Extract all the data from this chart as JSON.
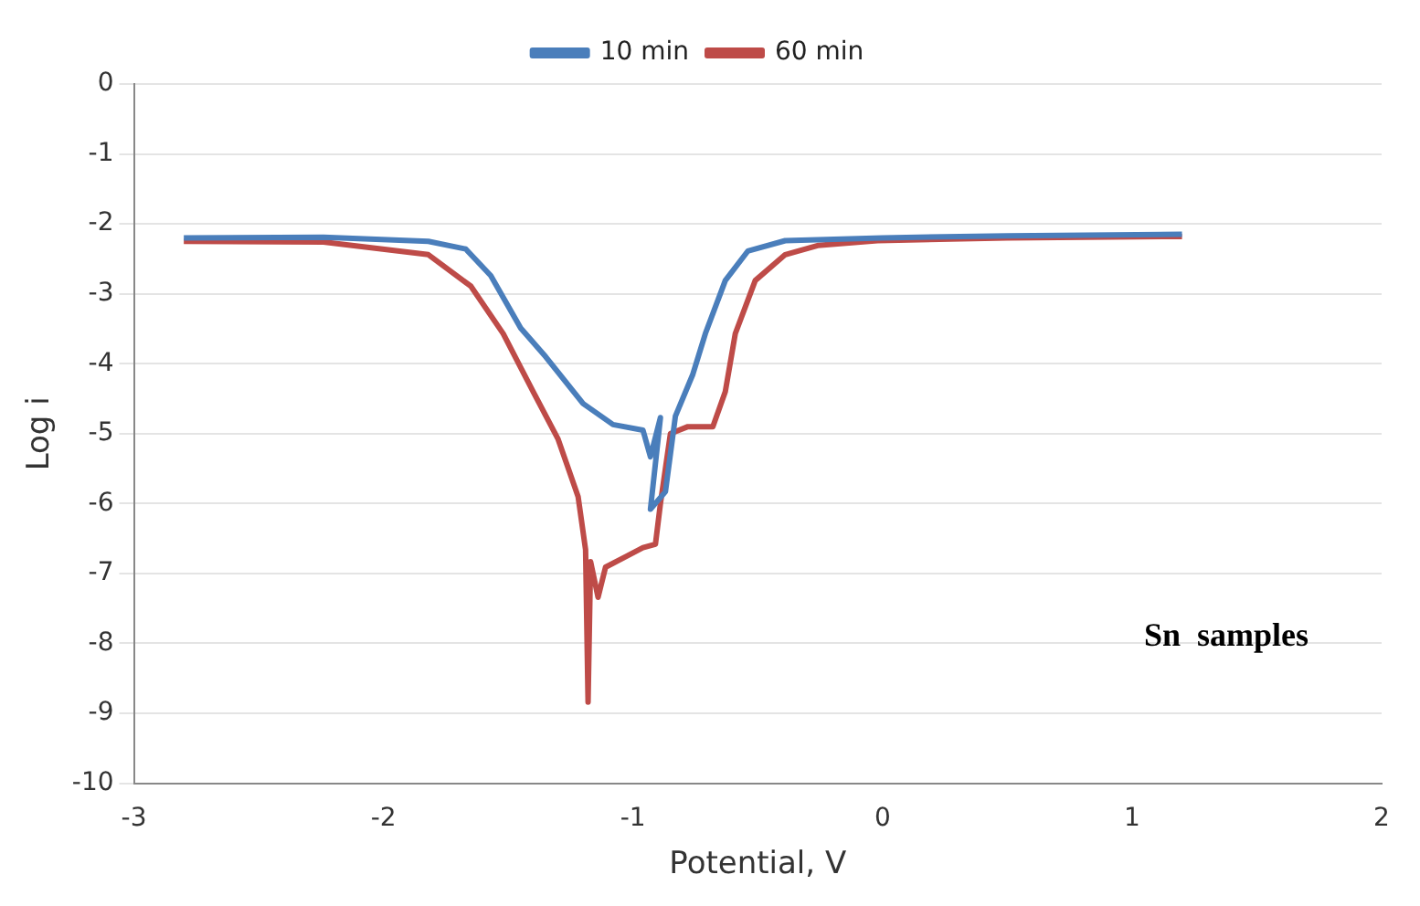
{
  "chart_data": {
    "type": "line",
    "xlabel": "Potential, V",
    "ylabel": "Log i",
    "xlim": [
      -3,
      2
    ],
    "xticks": [
      -3,
      -2,
      -1,
      0,
      1,
      2
    ],
    "ylim": [
      -10,
      0
    ],
    "yticks": [
      -10,
      -9,
      -8,
      -7,
      -6,
      -5,
      -4,
      -3,
      -2,
      -1,
      0
    ],
    "grid": "y",
    "legend": "top",
    "marker": "none",
    "line_style": "solid",
    "annotations": [
      "Sn  samples"
    ],
    "series": [
      {
        "name": "10 min",
        "color": "#4a7ebb",
        "x": [
          -2.8,
          -2.24,
          -1.82,
          -1.67,
          -1.57,
          -1.45,
          -1.35,
          -1.2,
          -1.08,
          -0.96,
          -0.93,
          -0.89,
          -0.93,
          -0.87,
          -0.83,
          -0.76,
          -0.71,
          -0.63,
          -0.54,
          -0.39,
          0,
          0.5,
          1.2
        ],
        "values": [
          -2.2,
          -2.19,
          -2.25,
          -2.36,
          -2.74,
          -3.49,
          -3.9,
          -4.57,
          -4.87,
          -4.95,
          -5.33,
          -4.77,
          -6.08,
          -5.83,
          -4.75,
          -4.15,
          -3.57,
          -2.81,
          -2.39,
          -2.24,
          -2.2,
          -2.17,
          -2.15
        ]
      },
      {
        "name": "60 min",
        "color": "#be4b48",
        "x": [
          -2.8,
          -2.24,
          -1.82,
          -1.65,
          -1.52,
          -1.4,
          -1.3,
          -1.22,
          -1.19,
          -1.18,
          -1.17,
          -1.14,
          -1.11,
          -1.03,
          -0.96,
          -0.91,
          -0.89,
          -0.85,
          -0.78,
          -0.68,
          -0.63,
          -0.59,
          -0.51,
          -0.39,
          -0.26,
          -0.02,
          0.5,
          1.2
        ],
        "values": [
          -2.25,
          -2.26,
          -2.44,
          -2.89,
          -3.57,
          -4.4,
          -5.08,
          -5.9,
          -6.66,
          -8.84,
          -6.83,
          -7.34,
          -6.91,
          -6.76,
          -6.63,
          -6.58,
          -6.0,
          -5.0,
          -4.9,
          -4.9,
          -4.4,
          -3.57,
          -2.81,
          -2.44,
          -2.31,
          -2.24,
          -2.2,
          -2.18
        ]
      }
    ]
  }
}
